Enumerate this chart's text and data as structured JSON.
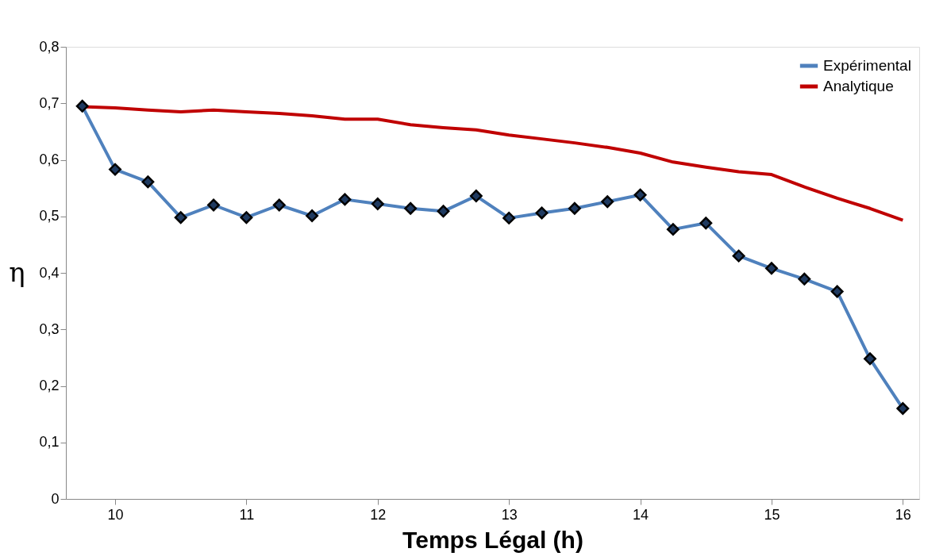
{
  "chart_data": {
    "type": "line",
    "xlabel": "Temps Légal (h)",
    "ylabel": "η",
    "x": [
      9.75,
      10,
      10.25,
      10.5,
      10.75,
      11,
      11.25,
      11.5,
      11.75,
      12,
      12.25,
      12.5,
      12.75,
      13,
      13.25,
      13.5,
      13.75,
      14,
      14.25,
      14.5,
      14.75,
      15,
      15.25,
      15.5,
      15.75,
      16
    ],
    "series": [
      {
        "name": "Expérimental",
        "color": "#4f81bd",
        "marker": "diamond",
        "values": [
          0.695,
          0.583,
          0.561,
          0.498,
          0.52,
          0.498,
          0.52,
          0.501,
          0.53,
          0.522,
          0.514,
          0.509,
          0.536,
          0.497,
          0.506,
          0.514,
          0.526,
          0.538,
          0.477,
          0.488,
          0.43,
          0.408,
          0.389,
          0.367,
          0.248,
          0.16
        ]
      },
      {
        "name": "Analytique",
        "color": "#c00000",
        "marker": "none",
        "values": [
          0.694,
          0.692,
          0.688,
          0.685,
          0.688,
          0.685,
          0.682,
          0.678,
          0.672,
          0.672,
          0.662,
          0.657,
          0.653,
          0.644,
          0.637,
          0.63,
          0.622,
          0.612,
          0.596,
          0.587,
          0.579,
          0.574,
          0.552,
          0.532,
          0.514,
          0.493
        ]
      }
    ],
    "xlim": [
      9.625,
      16.125
    ],
    "xticks": [
      10,
      11,
      12,
      13,
      14,
      15,
      16
    ],
    "ylim": [
      0,
      0.8
    ],
    "yticks": [
      0,
      {
        "value": 0.1,
        "label": "0,1"
      },
      {
        "value": 0.2,
        "label": "0,2"
      },
      {
        "value": 0.3,
        "label": "0,3"
      },
      {
        "value": 0.4,
        "label": "0,4"
      },
      {
        "value": 0.5,
        "label": "0,5"
      },
      {
        "value": 0.6,
        "label": "0,6"
      },
      {
        "value": 0.7,
        "label": "0,7"
      },
      {
        "value": 0.8,
        "label": "0,8"
      }
    ],
    "grid": false,
    "legend": "top right",
    "line_style": "solid"
  }
}
